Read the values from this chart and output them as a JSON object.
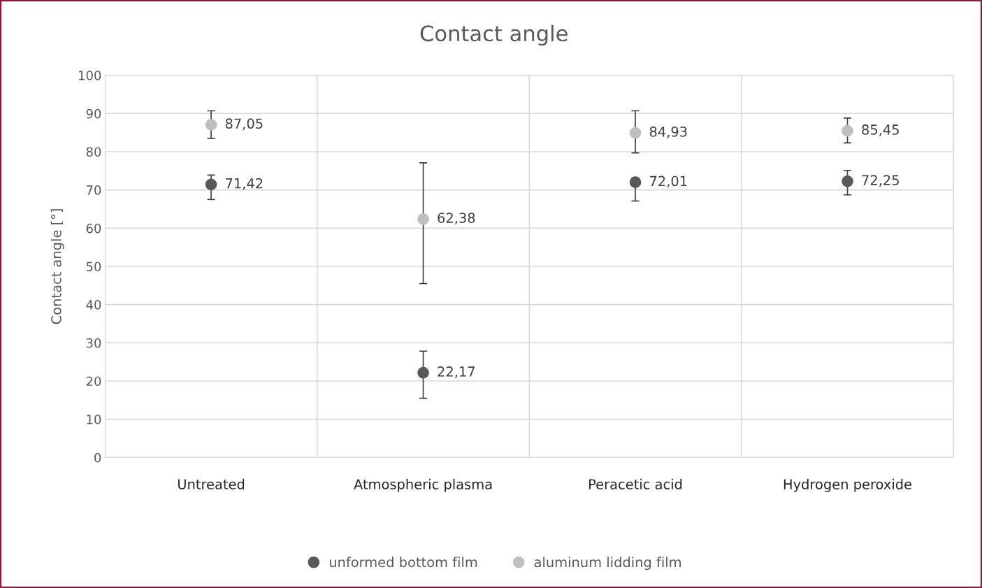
{
  "chart_data": {
    "type": "scatter",
    "title": "Contact angle",
    "ylabel": "Contact angle [°]",
    "categories": [
      "Untreated",
      "Atmospheric plasma",
      "Peracetic acid",
      "Hydrogen peroxide"
    ],
    "series": [
      {
        "name": "unformed bottom film",
        "color": "#595959",
        "values": [
          71.42,
          22.17,
          72.01,
          72.25
        ],
        "errors": [
          [
            67.5,
            73.9
          ],
          [
            15.5,
            27.8
          ],
          [
            67.1,
            73.1
          ],
          [
            68.7,
            75.1
          ]
        ],
        "value_labels": [
          "71,42",
          "22,17",
          "72,01",
          "72,25"
        ]
      },
      {
        "name": "aluminum lidding film",
        "color": "#bfbfbf",
        "values": [
          87.05,
          62.38,
          84.93,
          85.45
        ],
        "errors": [
          [
            83.5,
            90.7
          ],
          [
            45.5,
            77.1
          ],
          [
            79.7,
            90.7
          ],
          [
            82.3,
            88.8
          ]
        ],
        "value_labels": [
          "87,05",
          "62,38",
          "84,93",
          "85,45"
        ]
      }
    ],
    "ylim": [
      0,
      100
    ],
    "yticks": [
      0,
      10,
      20,
      30,
      40,
      50,
      60,
      70,
      80,
      90,
      100
    ],
    "grid": true,
    "legend": "bottom",
    "marker": "circle"
  }
}
